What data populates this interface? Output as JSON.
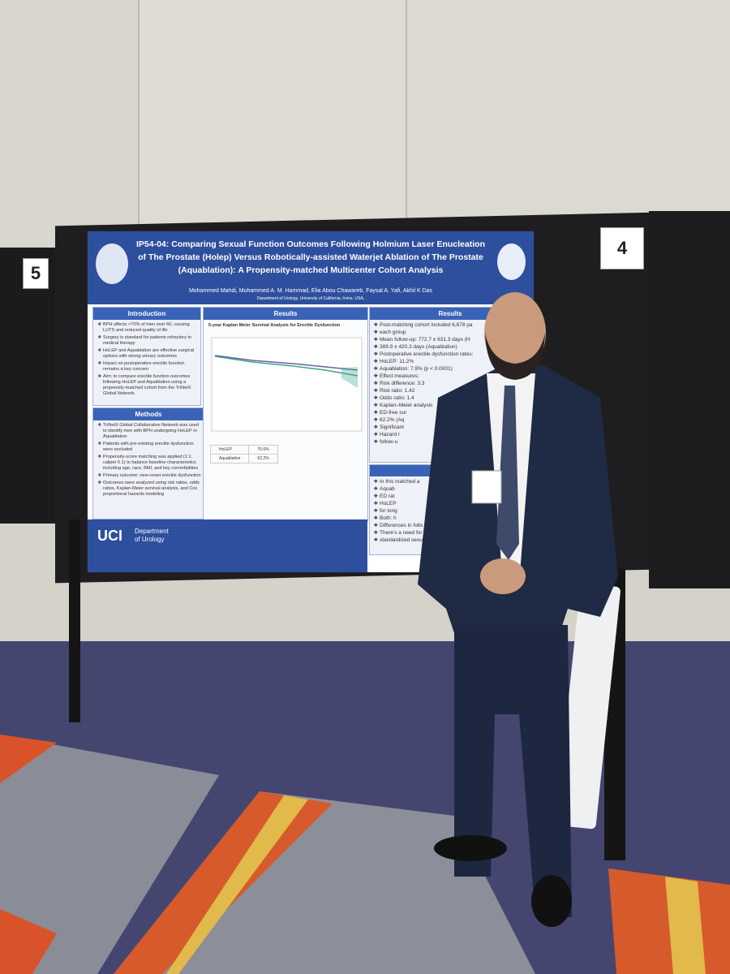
{
  "board_numbers": [
    "5",
    "4"
  ],
  "poster": {
    "title": "IP54-04: Comparing Sexual Function Outcomes Following Holmium Laser Enucleation of The Prostate (Holep) Versus Robotically-assisted Waterjet Ablation of The Prostate (Aquablation): A Propensity-matched Multicenter Cohort Analysis",
    "authors": "Mohammed Mahdi, Muhammed A. M. Hammad, Elia Abou Chawareb, Faysal A. Yafi, Akhil K Das",
    "affiliation": "Department of Urology, University of California, Irvine, USA,",
    "introduction": {
      "heading": "Introduction",
      "items": [
        "BPH affects >70% of men over 60, causing LUTS and reduced quality of life",
        "Surgery is standard for patients refractory to medical therapy",
        "HoLEP and Aquablation are effective surgical options with strong urinary outcomes",
        "Impact on postoperative erectile function remains a key concern",
        "Aim: to compare erectile function outcomes following HoLEP and Aquablation using a propensity-matched cohort from the TriNetX Global Network."
      ]
    },
    "methods": {
      "heading": "Methods",
      "items": [
        "TriNetX Global Collaborative Network was used to identify men with BPH undergoing HoLEP or Aquablation",
        "Patients with pre-existing erectile dysfunction were excluded",
        "Propensity-score matching was applied (1:1; caliper 0.1) to balance baseline characteristics including age, race, BMI, and key comorbidities",
        "Primary outcome: new-onset erectile dysfunction",
        "Outcomes were analyzed using risk ratios, odds ratios, Kaplan-Meier survival analysis, and Cox proportional hazards modeling"
      ]
    },
    "results_center": {
      "heading": "Results",
      "chart_title": "5-year Kaplan Meier Survival Analysis for Erectile Dysfunction",
      "table_rows": [
        [
          "HoLEP",
          "76.6%"
        ],
        [
          "Aquablation",
          "62.2%"
        ]
      ]
    },
    "results_right": {
      "heading": "Results",
      "items": [
        "Post-matching cohort included 6,678 pa",
        "each group",
        "Mean follow-up: 772.7 ± 631.3 days (H",
        "389.9 ± 420.3 days (Aquablation)",
        "Postoperative erectile dysfunction rates:",
        "HoLEP: 11.2%",
        "Aquablation: 7.9% (p < 0.0001)",
        "Effect measures:",
        "Risk difference: 3.3",
        "Risk ratio: 1.42",
        "Odds ratio: 1.4",
        "Kaplan–Meier analysis",
        "ED-free sur",
        "62.2% (Aq",
        "Significant",
        "Hazard r",
        "follow-u"
      ]
    },
    "conclusions": {
      "items": [
        "In this matched a",
        "Aquab",
        "ED rat",
        "HoLEP",
        "for long",
        "Both: h",
        "Differences in follo",
        "There's a need for s",
        "standardized sexual"
      ]
    },
    "footer": {
      "logo": "UCI",
      "department": "Department of Urology"
    }
  }
}
